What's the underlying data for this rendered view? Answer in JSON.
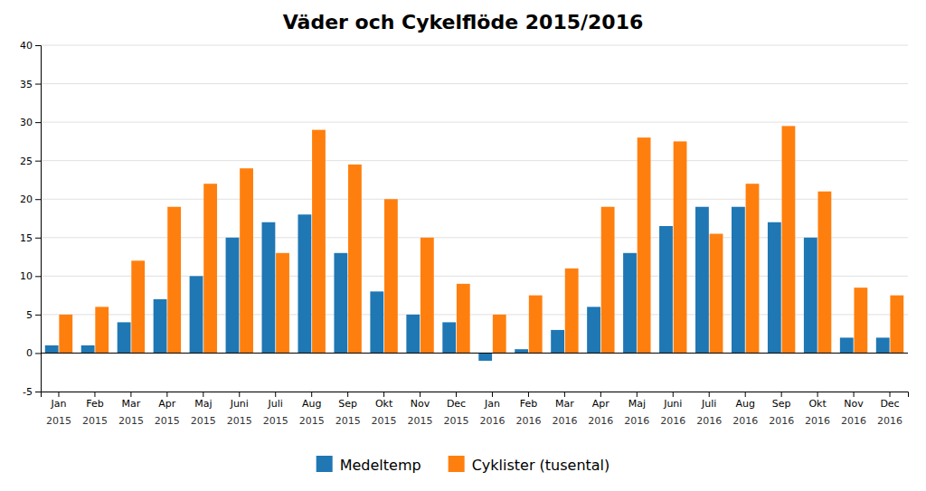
{
  "chart_data": {
    "type": "bar",
    "title": "Väder och Cykelflöde 2015/2016",
    "categories": [
      "Jan",
      "Feb",
      "Mar",
      "Apr",
      "Maj",
      "Juni",
      "Juli",
      "Aug",
      "Sep",
      "Okt",
      "Nov",
      "Dec",
      "Jan",
      "Feb",
      "Mar",
      "Apr",
      "Maj",
      "Juni",
      "Juli",
      "Aug",
      "Sep",
      "Okt",
      "Nov",
      "Dec"
    ],
    "annotations": [
      "2015",
      "2015",
      "2015",
      "2015",
      "2015",
      "2015",
      "2015",
      "2015",
      "2015",
      "2015",
      "2015",
      "2015",
      "2016",
      "2016",
      "2016",
      "2016",
      "2016",
      "2016",
      "2016",
      "2016",
      "2016",
      "2016",
      "2016",
      "2016"
    ],
    "series": [
      {
        "name": "Medeltemp",
        "values": [
          1,
          1,
          4,
          7,
          10,
          15,
          17,
          18,
          13,
          8,
          5,
          4,
          -1,
          0.5,
          3,
          6,
          13,
          16.5,
          19,
          19,
          17,
          15,
          2,
          2
        ]
      },
      {
        "name": "Cyklister (tusental)",
        "values": [
          5,
          6,
          12,
          19,
          22,
          24,
          13,
          29,
          24.5,
          20,
          15,
          9,
          5,
          7.5,
          11,
          19,
          28,
          27.5,
          15.5,
          22,
          29.5,
          21,
          8.5,
          7.5
        ]
      }
    ],
    "ylim": [
      -5,
      40
    ],
    "yticks": [
      -5,
      0,
      5,
      10,
      15,
      20,
      25,
      30,
      35,
      40
    ],
    "grid": true,
    "legend": "bottom"
  }
}
